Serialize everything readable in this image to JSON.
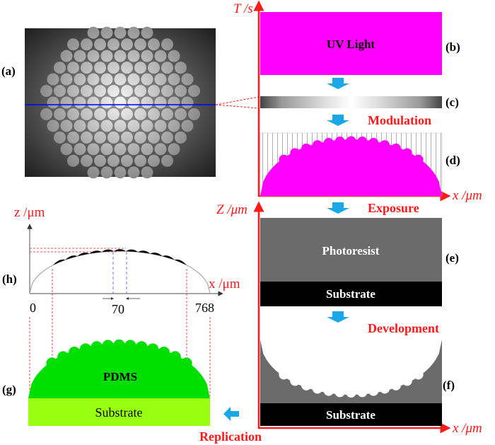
{
  "panels": {
    "a": {
      "label": "(a)"
    },
    "b": {
      "label": "(b)",
      "text": "UV Light",
      "color": "#ff00ff"
    },
    "c": {
      "label": "(c)"
    },
    "d": {
      "label": "(d)"
    },
    "e": {
      "label": "(e)",
      "photoresist": "Photoresist",
      "substrate": "Substrate"
    },
    "f": {
      "label": "(f)",
      "substrate": "Substrate"
    },
    "g": {
      "label": "(g)",
      "pdms": "PDMS",
      "substrate": "Substrate",
      "pdms_color": "#00e000",
      "substrate_color": "#99ff11"
    },
    "h": {
      "label": "(h)",
      "ylabel": "z /μm",
      "xlabel": "x /μm",
      "tick_start": "0",
      "tick_pitch": "70",
      "tick_end": "768"
    }
  },
  "axes": {
    "t_label": "T /s",
    "x_label_top": "x /μm",
    "z_label": "Z /μm",
    "x_label_bottom": "x /μm"
  },
  "steps": {
    "modulation": "Modulation",
    "exposure": "Exposure",
    "development": "Development",
    "replication": "Replication"
  },
  "colors": {
    "axis": "#ff1a1a",
    "arrow": "#1aa7e8",
    "scan_line": "#0000ff"
  }
}
